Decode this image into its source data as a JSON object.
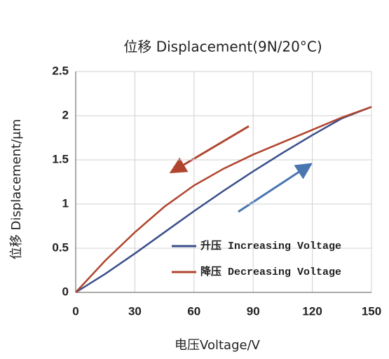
{
  "chart_data": {
    "type": "line",
    "title": "位移 Displacement(9N/20°C)",
    "x_label": "电压Voltage/V",
    "y_label": "位移 Displacement/μm",
    "x": [
      0,
      15,
      30,
      45,
      60,
      75,
      90,
      105,
      120,
      135,
      150
    ],
    "series": [
      {
        "name": "升压 Increasing Voltage",
        "color": "#3a4f8a",
        "values": [
          0,
          0.21,
          0.44,
          0.68,
          0.92,
          1.15,
          1.37,
          1.58,
          1.78,
          1.97,
          2.1
        ]
      },
      {
        "name": "降压 Decreasing Voltage",
        "color": "#b0442e",
        "values": [
          0,
          0.36,
          0.68,
          0.97,
          1.21,
          1.4,
          1.56,
          1.7,
          1.84,
          1.98,
          2.1
        ]
      }
    ],
    "xlim": [
      0,
      150
    ],
    "xticks": [
      0,
      30,
      60,
      90,
      120,
      150
    ],
    "ylim": [
      0,
      2.5
    ],
    "yticks": [
      0,
      0.5,
      1,
      1.5,
      2,
      2.5
    ],
    "grid": true
  }
}
